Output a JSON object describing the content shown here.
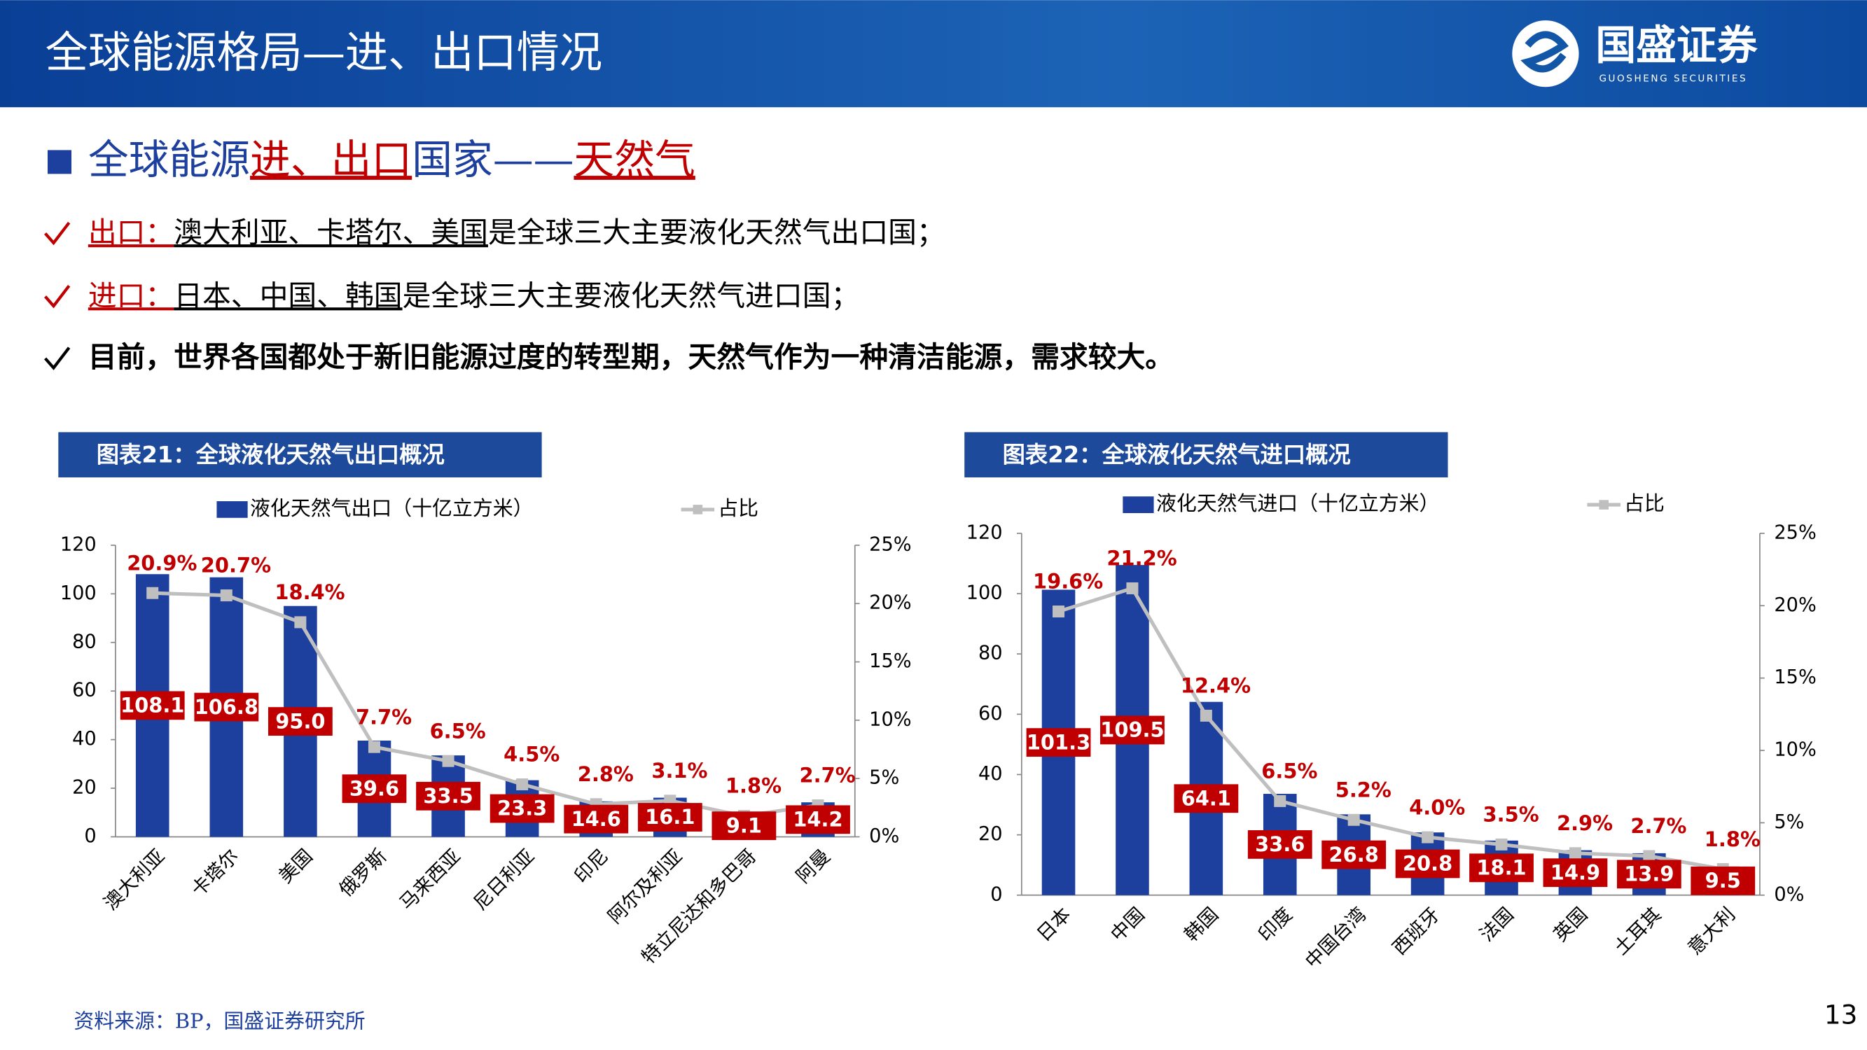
{
  "header": {
    "title": "全球能源格局—进、出口情况",
    "logo": "国盛证券",
    "logo_sub": "GUOSHENG SECURITIES"
  },
  "section": {
    "parts": [
      "全球能源",
      "进、出口",
      "国家——",
      "天然气"
    ]
  },
  "bullets": [
    {
      "label": "出口：",
      "subject": "澳大利亚、卡塔尔、美国",
      "text": "是全球三大主要液化天然气出口国；"
    },
    {
      "label": "进口：",
      "subject": "日本、中国、韩国",
      "text": "是全球三大主要液化天然气进口国；"
    },
    {
      "text": "目前，世界各国都处于新旧能源过度的转型期，天然气作为一种清洁能源，需求较大。"
    }
  ],
  "chart_data": [
    {
      "type": "bar",
      "title": "图表21：全球液化天然气出口概况",
      "categories": [
        "澳大利亚",
        "卡塔尔",
        "美国",
        "俄罗斯",
        "马来西亚",
        "尼日利亚",
        "印尼",
        "阿尔及利亚",
        "特立尼达和多巴哥",
        "阿曼"
      ],
      "series": [
        {
          "name": "液化天然气出口（十亿立方米）",
          "color": "#1d3f9e",
          "values": [
            108.1,
            106.8,
            95.0,
            39.6,
            33.5,
            23.3,
            14.6,
            16.1,
            9.1,
            14.2
          ],
          "value_labels": [
            "108.1",
            "106.8",
            "95.0",
            "39.6",
            "33.5",
            "23.3",
            "14.6",
            "16.1",
            "9.1",
            "14.2"
          ]
        },
        {
          "name": "占比",
          "type": "line",
          "axis": "y2",
          "color": "#bfbfbf",
          "values": [
            20.9,
            20.7,
            18.4,
            7.7,
            6.5,
            4.5,
            2.8,
            3.1,
            1.8,
            2.7
          ],
          "value_labels": [
            "20.9%",
            "20.7%",
            "18.4%",
            "7.7%",
            "6.5%",
            "4.5%",
            "2.8%",
            "3.1%",
            "1.8%",
            "2.7%"
          ]
        }
      ],
      "ylim": [
        0,
        120
      ],
      "yticks": [
        0,
        20,
        40,
        60,
        80,
        100,
        120
      ],
      "y2lim": [
        0,
        25
      ],
      "y2ticks": [
        {
          "value": 0,
          "label": "0%"
        },
        {
          "value": 5,
          "label": "5%"
        },
        {
          "value": 10,
          "label": "10%"
        },
        {
          "value": 15,
          "label": "15%"
        },
        {
          "value": 20,
          "label": "20%"
        },
        {
          "value": 25,
          "label": "25%"
        }
      ],
      "label_color": "#c00000"
    },
    {
      "type": "bar",
      "title": "图表22：全球液化天然气进口概况",
      "categories": [
        "日本",
        "中国",
        "韩国",
        "印度",
        "中国台湾",
        "西班牙",
        "法国",
        "英国",
        "土耳其",
        "意大利"
      ],
      "series": [
        {
          "name": "液化天然气进口（十亿立方米）",
          "color": "#1d3f9e",
          "values": [
            101.3,
            109.5,
            64.1,
            33.6,
            26.8,
            20.8,
            18.1,
            14.9,
            13.9,
            9.5
          ],
          "value_labels": [
            "101.3",
            "109.5",
            "64.1",
            "33.6",
            "26.8",
            "20.8",
            "18.1",
            "14.9",
            "13.9",
            "9.5"
          ]
        },
        {
          "name": "占比",
          "type": "line",
          "axis": "y2",
          "color": "#bfbfbf",
          "values": [
            19.6,
            21.2,
            12.4,
            6.5,
            5.2,
            4.0,
            3.5,
            2.9,
            2.7,
            1.8
          ],
          "value_labels": [
            "19.6%",
            "21.2%",
            "12.4%",
            "6.5%",
            "5.2%",
            "4.0%",
            "3.5%",
            "2.9%",
            "2.7%",
            "1.8%"
          ]
        }
      ],
      "ylim": [
        0,
        120
      ],
      "yticks": [
        0,
        20,
        40,
        60,
        80,
        100,
        120
      ],
      "y2lim": [
        0,
        25
      ],
      "y2ticks": [
        {
          "value": 0,
          "label": "0%"
        },
        {
          "value": 5,
          "label": "5%"
        },
        {
          "value": 10,
          "label": "10%"
        },
        {
          "value": 15,
          "label": "15%"
        },
        {
          "value": 20,
          "label": "20%"
        },
        {
          "value": 25,
          "label": "25%"
        }
      ],
      "label_color": "#c00000"
    }
  ],
  "source": "资料来源：BP，国盛证券研究所",
  "page": "13"
}
